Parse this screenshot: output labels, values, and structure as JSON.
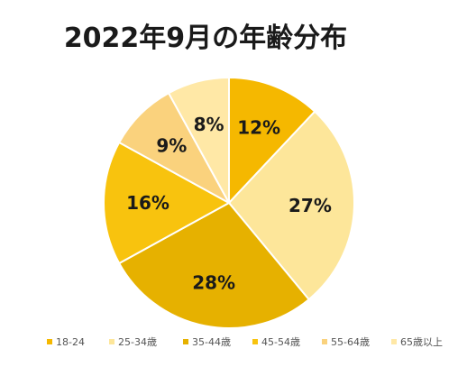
{
  "chart_data": {
    "type": "pie",
    "title": "2022年9月の年齢分布",
    "categories": [
      "18-24",
      "25-34歳",
      "35-44歳",
      "45-54歳",
      "55-64歳",
      "65歳以上"
    ],
    "values": [
      12,
      27,
      28,
      16,
      9,
      8
    ],
    "value_labels": [
      "12%",
      "27%",
      "28%",
      "16%",
      "9%",
      "8%"
    ],
    "colors": [
      "#F5B800",
      "#FDE69A",
      "#E6B100",
      "#F8C30E",
      "#FAD27D",
      "#FFE8A6"
    ],
    "start_angle_deg": 0,
    "direction": "clockwise",
    "legend_position": "bottom"
  }
}
